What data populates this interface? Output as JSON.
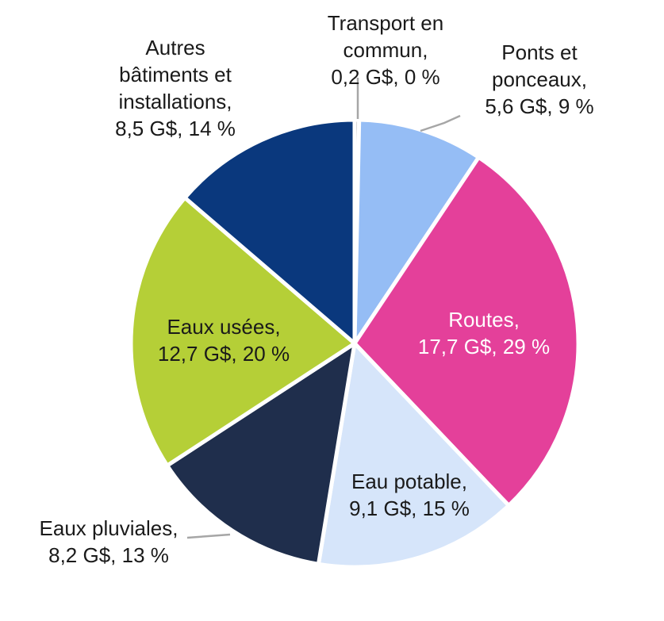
{
  "chart_data": {
    "type": "pie",
    "title": "",
    "unit": "G$",
    "slices": [
      {
        "label_lines": [
          "Transport en",
          "commun,",
          "0,2 G$, 0 %"
        ],
        "value": 0.2,
        "percent": 0,
        "color": "#b3b3b3"
      },
      {
        "label_lines": [
          "Ponts et",
          "ponceaux,",
          "5,6 G$, 9 %"
        ],
        "value": 5.6,
        "percent": 9,
        "color": "#95bdf5"
      },
      {
        "label_lines": [
          "Routes,",
          "17,7 G$, 29 %"
        ],
        "value": 17.7,
        "percent": 29,
        "color": "#e4409a"
      },
      {
        "label_lines": [
          "Eau potable,",
          "9,1 G$, 15 %"
        ],
        "value": 9.1,
        "percent": 15,
        "color": "#d6e5fa"
      },
      {
        "label_lines": [
          "Eaux pluviales,",
          "8,2 G$, 13 %"
        ],
        "value": 8.2,
        "percent": 13,
        "color": "#1f2e4c"
      },
      {
        "label_lines": [
          "Eaux usées,",
          "12,7 G$, 20 %"
        ],
        "value": 12.7,
        "percent": 20,
        "color": "#b5cf37"
      },
      {
        "label_lines": [
          "Autres",
          "bâtiments et",
          "installations,",
          "8,5 G$, 14 %"
        ],
        "value": 8.5,
        "percent": 14,
        "color": "#0a387d"
      }
    ],
    "start_angle_deg": 0,
    "direction": "clockwise"
  }
}
